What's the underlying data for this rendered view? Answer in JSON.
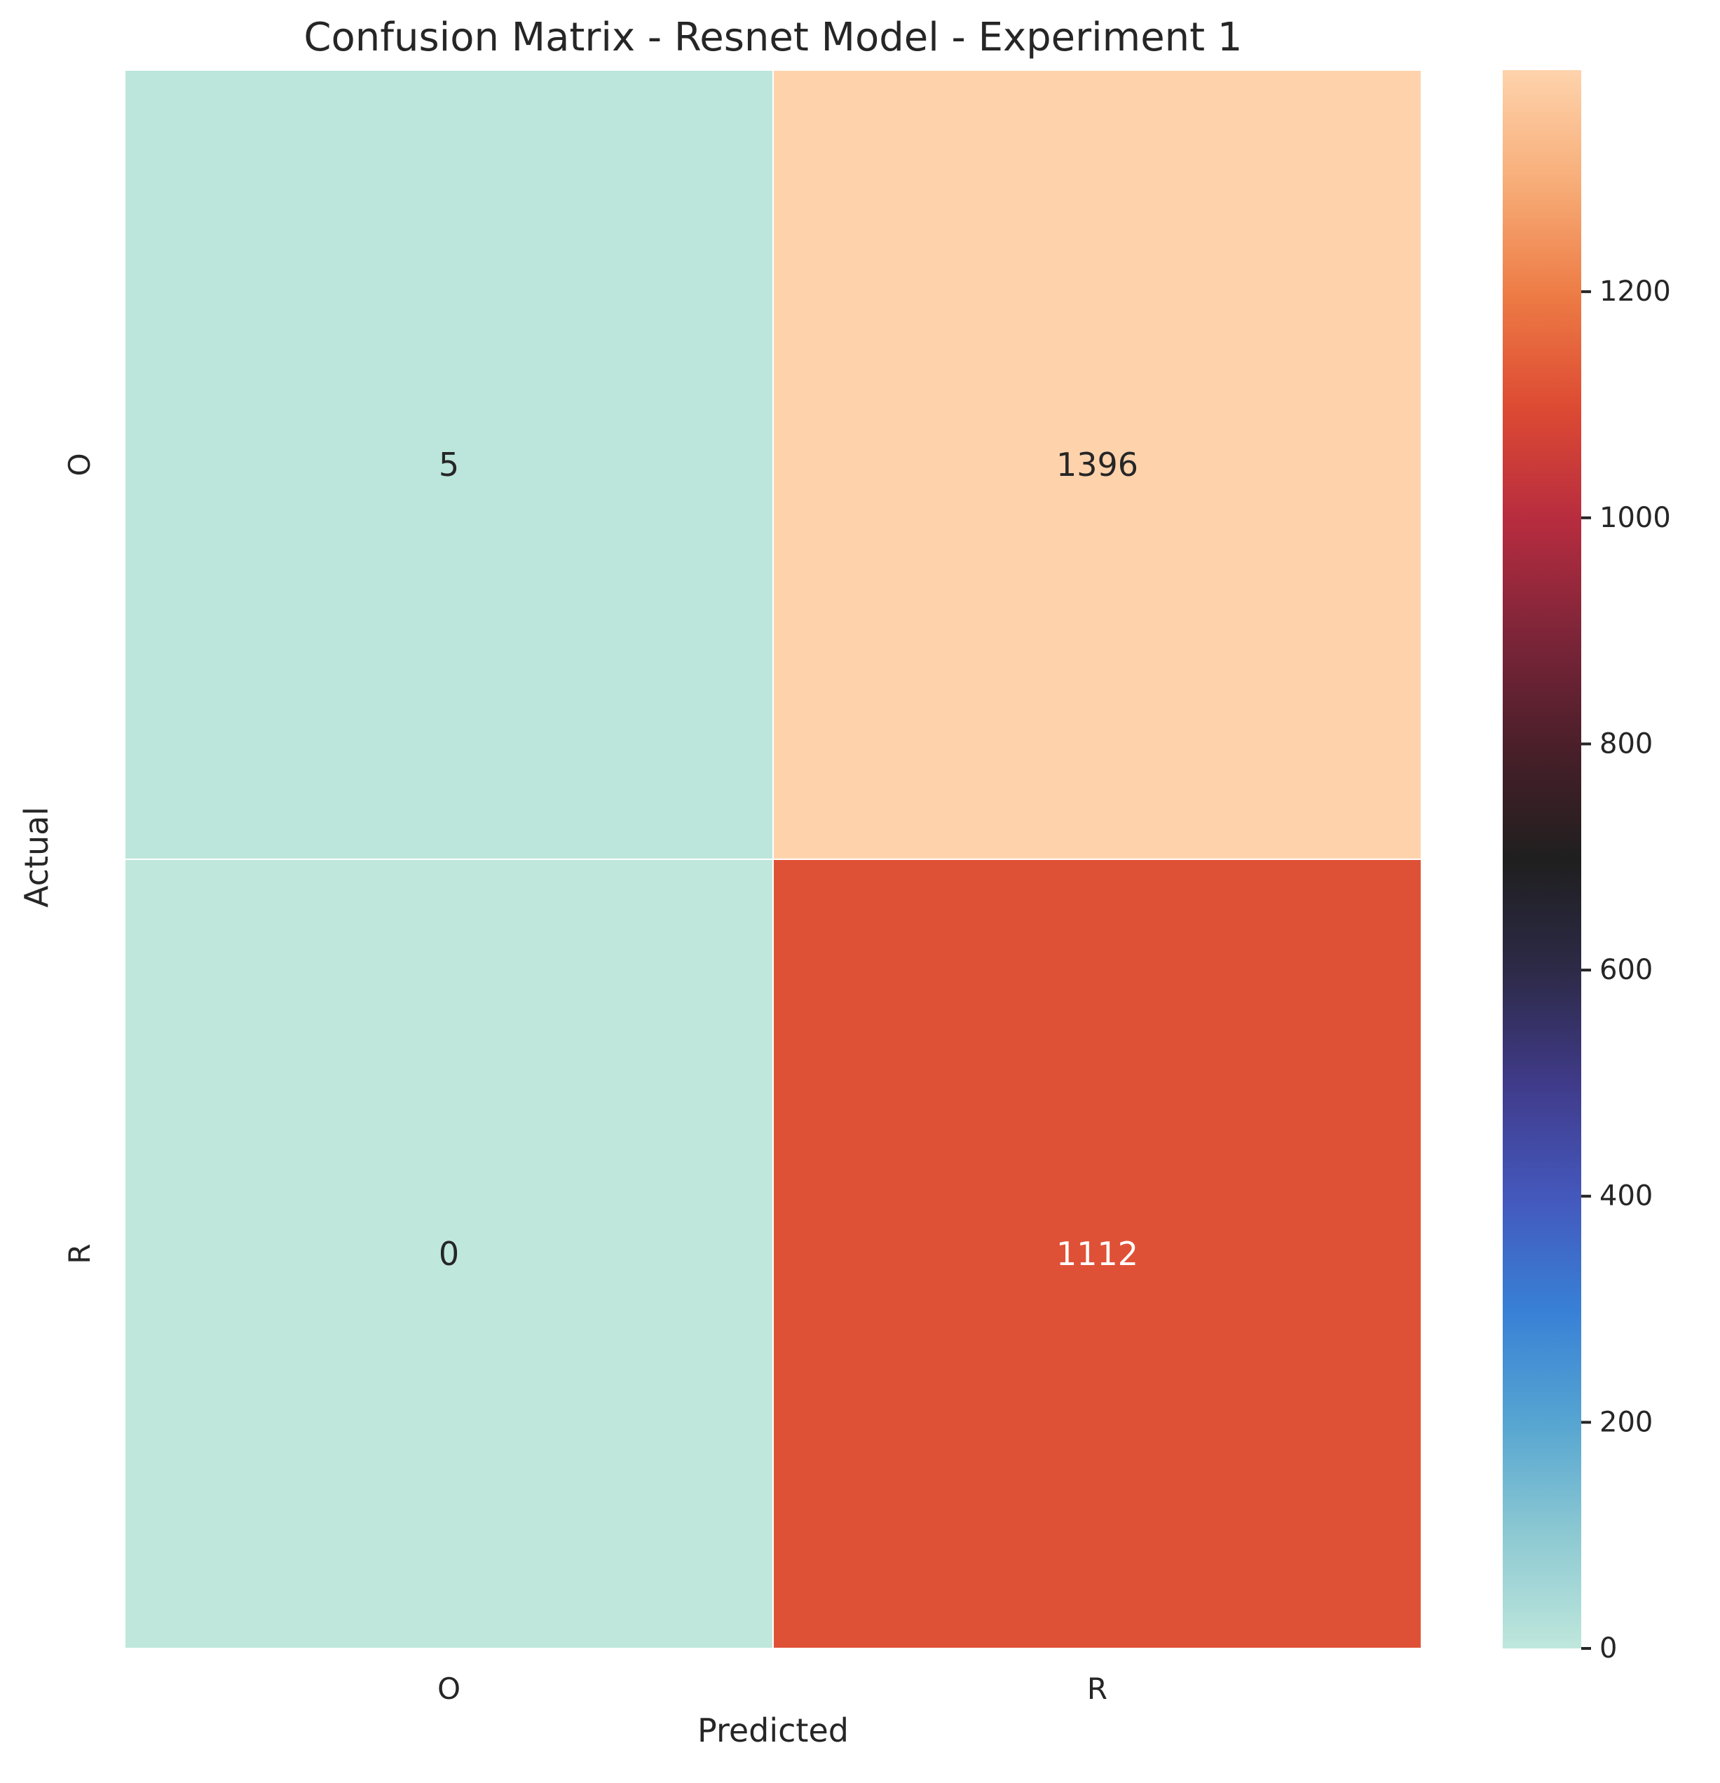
{
  "chart_data": {
    "type": "heatmap",
    "title": "Confusion Matrix - Resnet Model - Experiment 1",
    "xlabel": "Predicted",
    "ylabel": "Actual",
    "x_categories": [
      "O",
      "R"
    ],
    "y_categories": [
      "O",
      "R"
    ],
    "values": [
      [
        5,
        1396
      ],
      [
        0,
        1112
      ]
    ],
    "colorbar": {
      "min": 0,
      "max": 1396,
      "ticks": [
        0,
        200,
        400,
        600,
        800,
        1000,
        1200
      ],
      "colormap": "icefire",
      "stops": [
        "#bfe7dc",
        "#8dc9d2",
        "#56a5d1",
        "#3880d6",
        "#4458bc",
        "#403b8a",
        "#2d2a48",
        "#1f1f1f",
        "#4a1f2a",
        "#7e2539",
        "#b72c3f",
        "#dd4a33",
        "#ed7b45",
        "#f7ad78",
        "#fed3ac"
      ]
    },
    "grid": false
  }
}
